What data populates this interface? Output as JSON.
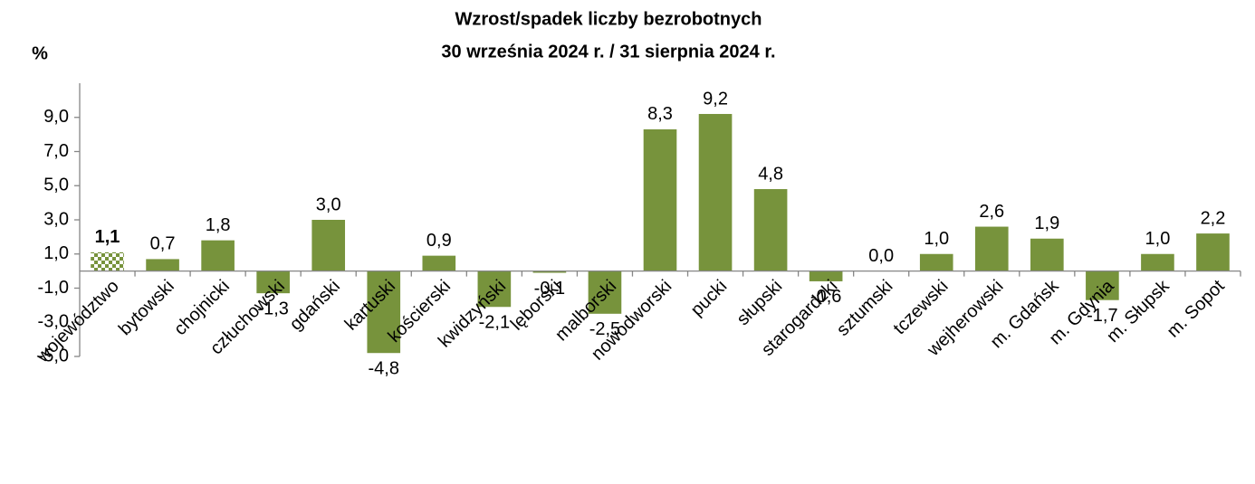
{
  "chart_data": {
    "type": "bar",
    "title": [
      "Wzrost/spadek liczby bezrobotnych",
      "30 września 2024 r. / 31 sierpnia 2024 r."
    ],
    "ylabel": "%",
    "categories": [
      "województwo",
      "bytowski",
      "chojnicki",
      "człuchowski",
      "gdański",
      "kartuski",
      "kościerski",
      "kwidzyński",
      "lęborski",
      "malborski",
      "nowodworski",
      "pucki",
      "słupski",
      "starogardzki",
      "sztumski",
      "tczewski",
      "wejherowski",
      "m. Gdańsk",
      "m. Gdynia",
      "m. Słupsk",
      "m. Sopot"
    ],
    "values": [
      1.1,
      0.7,
      1.8,
      -1.3,
      3.0,
      -4.8,
      0.9,
      -2.1,
      -0.1,
      -2.5,
      8.3,
      9.2,
      4.8,
      -0.6,
      0.0,
      1.0,
      2.6,
      1.9,
      -1.7,
      1.0,
      2.2
    ],
    "value_labels": [
      "1,1",
      "0,7",
      "1,8",
      "-1,3",
      "3,0",
      "-4,8",
      "0,9",
      "-2,1",
      "-0,1",
      "-2,5",
      "8,3",
      "9,2",
      "4,8",
      "-0,6",
      "0,0",
      "1,0",
      "2,6",
      "1,9",
      "-1,7",
      "1,0",
      "2,2"
    ],
    "color": "#77933c",
    "ylim": [
      -5,
      11
    ],
    "yticks": [
      {
        "value": -5,
        "label": "-5,0"
      },
      {
        "value": -3,
        "label": "-3,0"
      },
      {
        "value": -1,
        "label": "-1,0"
      },
      {
        "value": 1,
        "label": "1,0"
      },
      {
        "value": 3,
        "label": "3,0"
      },
      {
        "value": 5,
        "label": "5,0"
      },
      {
        "value": 7,
        "label": "7,0"
      },
      {
        "value": 9,
        "label": "9,0"
      }
    ],
    "grid": false
  }
}
